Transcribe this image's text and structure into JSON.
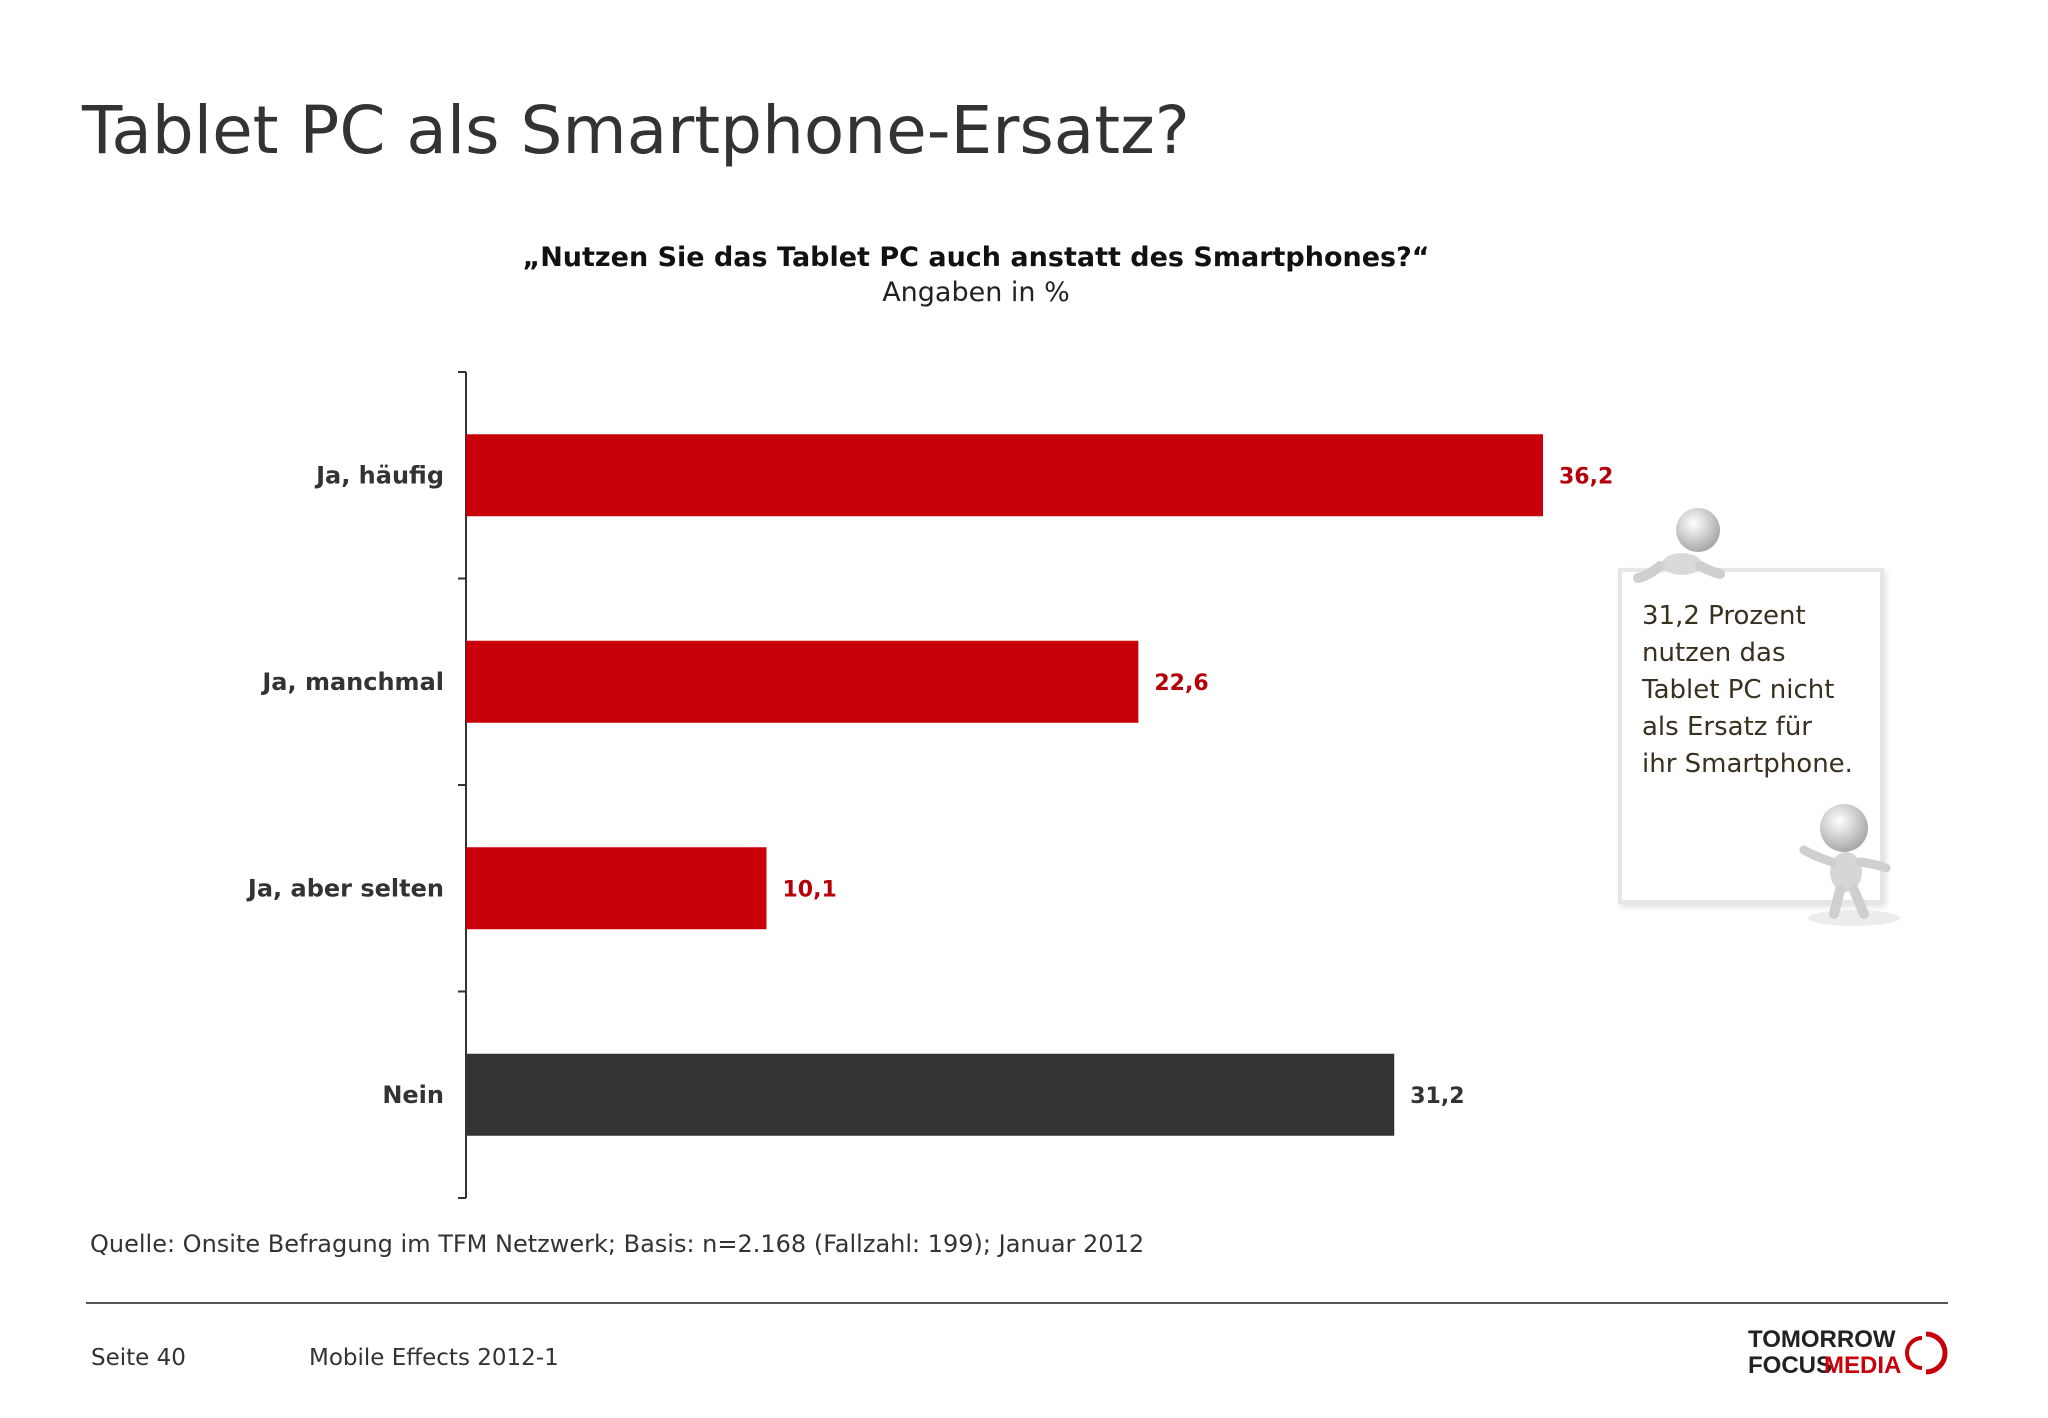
{
  "page": {
    "title": "Tablet PC als Smartphone-Ersatz?",
    "source": "Quelle: Onsite Befragung im TFM Netzwerk; Basis: n=2.168 (Fallzahl: 199); Januar 2012",
    "footer": {
      "page": "Seite 40",
      "document": "Mobile Effects 2012-1"
    },
    "logo": {
      "line1": "TOMORROW",
      "line2a": "FOCUS",
      "line2b": "MEDIA"
    }
  },
  "callout": {
    "text": "31,2 Prozent\nnutzen das\nTablet PC nicht\nals Ersatz für\nihr Smartphone."
  },
  "colors": {
    "accent": "#c8000a",
    "dark": "#333333",
    "value_red": "#b5000a"
  },
  "chart_data": {
    "type": "bar",
    "orientation": "horizontal",
    "title": "„Nutzen Sie das Tablet PC auch anstatt des Smartphones?“",
    "subtitle": "Angaben in %",
    "categories": [
      "Ja, häufig",
      "Ja, manchmal",
      "Ja, aber selten",
      "Nein"
    ],
    "values": [
      36.2,
      22.6,
      10.1,
      31.2
    ],
    "value_labels": [
      "36,2",
      "22,6",
      "10,1",
      "31,2"
    ],
    "bar_colors": [
      "#c8000a",
      "#c8000a",
      "#c8000a",
      "#333333"
    ],
    "label_colors": [
      "#b5000a",
      "#b5000a",
      "#b5000a",
      "#333333"
    ],
    "xlim": [
      0,
      40
    ],
    "grid": false,
    "legend": "none"
  }
}
